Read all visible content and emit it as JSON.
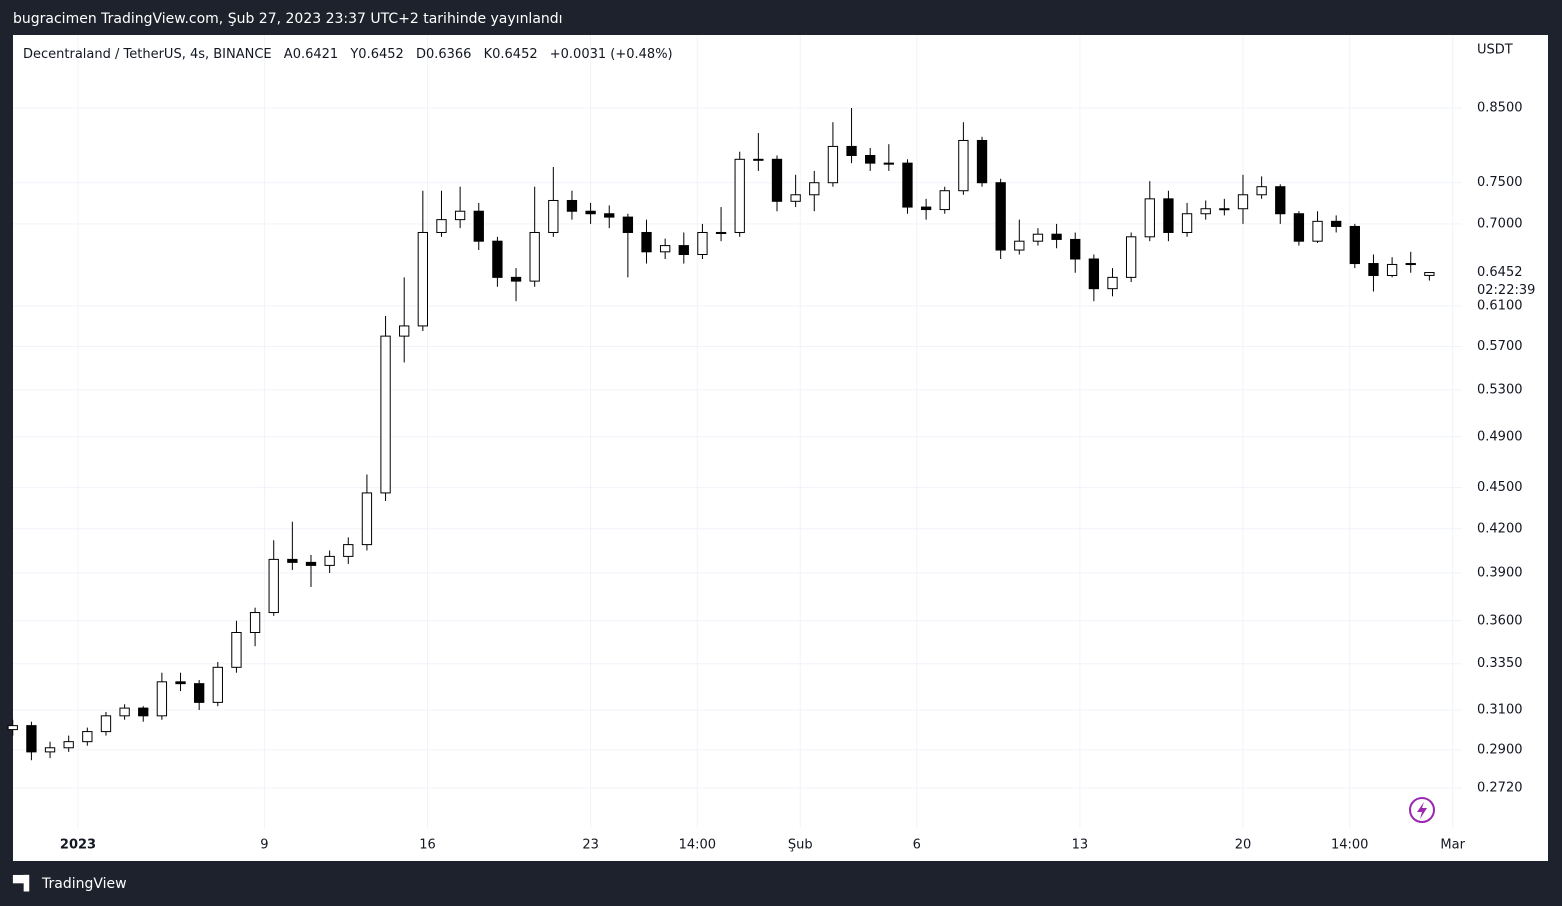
{
  "header": {
    "text": "bugracimen TradingView.com, Şub 27, 2023 23:37 UTC+2 tarihinde yayınlandı"
  },
  "footer": {
    "brand": "TradingView"
  },
  "chart_data": {
    "type": "candlestick",
    "title": "Decentraland / TetherUS, 4s, BINANCE",
    "ohlc_labels": [
      "A",
      "Y",
      "D",
      "K"
    ],
    "change": "+0.0031 (+0.48%)",
    "unit": "USDT",
    "countdown": "02:22:39",
    "log_scale": true,
    "grid": true,
    "up_color": "#ffffff",
    "down_color": "#000000",
    "wick_color": "#000000",
    "x": [
      -2.8,
      -2,
      -1.2,
      -0.4,
      0.4,
      1.2,
      2,
      2.8,
      3.6,
      4.4,
      5.2,
      6,
      6.8,
      7.6,
      8.4,
      9.2,
      10,
      10.8,
      11.6,
      12.4,
      13.2,
      14,
      14.8,
      15.6,
      16.4,
      17.2,
      18,
      18.8,
      19.6,
      20.4,
      21.2,
      22,
      22.8,
      23.6,
      24.4,
      25.2,
      26,
      26.8,
      27.6,
      28.4,
      29.2,
      30,
      30.8,
      31.6,
      32.4,
      33.2,
      34,
      34.8,
      35.6,
      36.4,
      37.2,
      38,
      38.8,
      39.6,
      40.4,
      41.2,
      42,
      42.8,
      43.6,
      44.4,
      45.2,
      46,
      46.8,
      47.6,
      48.4,
      49.2,
      50,
      50.8,
      51.6,
      52.4,
      53.2,
      54,
      54.8,
      55.6,
      56.4,
      57.2,
      58
    ],
    "open": [
      0.3,
      0.302,
      0.289,
      0.291,
      0.294,
      0.299,
      0.307,
      0.311,
      0.307,
      0.325,
      0.324,
      0.314,
      0.333,
      0.353,
      0.365,
      0.399,
      0.397,
      0.395,
      0.401,
      0.409,
      0.446,
      0.58,
      0.59,
      0.69,
      0.705,
      0.715,
      0.68,
      0.64,
      0.636,
      0.69,
      0.728,
      0.715,
      0.712,
      0.708,
      0.69,
      0.668,
      0.675,
      0.665,
      0.69,
      0.69,
      0.78,
      0.78,
      0.727,
      0.735,
      0.75,
      0.797,
      0.785,
      0.775,
      0.775,
      0.72,
      0.717,
      0.74,
      0.805,
      0.75,
      0.67,
      0.68,
      0.688,
      0.682,
      0.66,
      0.628,
      0.64,
      0.685,
      0.73,
      0.69,
      0.712,
      0.718,
      0.718,
      0.735,
      0.745,
      0.712,
      0.68,
      0.703,
      0.697,
      0.655,
      0.642,
      0.654,
      0.6421
    ],
    "high": [
      0.305,
      0.304,
      0.294,
      0.297,
      0.301,
      0.309,
      0.313,
      0.312,
      0.33,
      0.33,
      0.326,
      0.336,
      0.36,
      0.368,
      0.412,
      0.425,
      0.402,
      0.405,
      0.414,
      0.46,
      0.6,
      0.64,
      0.74,
      0.74,
      0.745,
      0.725,
      0.685,
      0.65,
      0.745,
      0.77,
      0.74,
      0.725,
      0.722,
      0.712,
      0.705,
      0.683,
      0.69,
      0.7,
      0.72,
      0.79,
      0.815,
      0.785,
      0.76,
      0.765,
      0.83,
      0.85,
      0.795,
      0.8,
      0.78,
      0.73,
      0.745,
      0.83,
      0.81,
      0.755,
      0.705,
      0.695,
      0.7,
      0.69,
      0.665,
      0.65,
      0.69,
      0.752,
      0.74,
      0.725,
      0.728,
      0.73,
      0.76,
      0.758,
      0.748,
      0.715,
      0.715,
      0.71,
      0.7,
      0.665,
      0.662,
      0.668,
      0.6452
    ],
    "low": [
      0.297,
      0.285,
      0.286,
      0.289,
      0.292,
      0.297,
      0.305,
      0.304,
      0.305,
      0.32,
      0.31,
      0.312,
      0.33,
      0.345,
      0.363,
      0.392,
      0.381,
      0.39,
      0.396,
      0.405,
      0.44,
      0.555,
      0.585,
      0.685,
      0.695,
      0.67,
      0.63,
      0.615,
      0.63,
      0.685,
      0.705,
      0.7,
      0.695,
      0.64,
      0.655,
      0.66,
      0.655,
      0.66,
      0.68,
      0.685,
      0.765,
      0.715,
      0.72,
      0.715,
      0.745,
      0.775,
      0.765,
      0.765,
      0.712,
      0.705,
      0.712,
      0.735,
      0.745,
      0.66,
      0.665,
      0.675,
      0.672,
      0.645,
      0.615,
      0.62,
      0.635,
      0.68,
      0.68,
      0.685,
      0.705,
      0.71,
      0.7,
      0.73,
      0.7,
      0.675,
      0.678,
      0.69,
      0.65,
      0.625,
      0.64,
      0.645,
      0.6366
    ],
    "close": [
      0.302,
      0.289,
      0.291,
      0.294,
      0.299,
      0.307,
      0.311,
      0.307,
      0.325,
      0.324,
      0.314,
      0.333,
      0.353,
      0.365,
      0.399,
      0.397,
      0.395,
      0.401,
      0.409,
      0.446,
      0.58,
      0.59,
      0.69,
      0.705,
      0.715,
      0.68,
      0.64,
      0.636,
      0.69,
      0.728,
      0.715,
      0.712,
      0.708,
      0.69,
      0.668,
      0.675,
      0.665,
      0.69,
      0.69,
      0.78,
      0.78,
      0.727,
      0.735,
      0.75,
      0.797,
      0.785,
      0.775,
      0.775,
      0.72,
      0.717,
      0.74,
      0.805,
      0.75,
      0.67,
      0.68,
      0.688,
      0.682,
      0.66,
      0.628,
      0.64,
      0.685,
      0.73,
      0.69,
      0.712,
      0.718,
      0.718,
      0.735,
      0.745,
      0.712,
      0.68,
      0.703,
      0.697,
      0.655,
      0.642,
      0.654,
      0.655,
      0.6452
    ],
    "xlim": [
      -2.79,
      59.4
    ],
    "xticks": [
      {
        "value": 0,
        "label": "2023"
      },
      {
        "value": 8,
        "label": "9"
      },
      {
        "value": 15,
        "label": "16"
      },
      {
        "value": 22,
        "label": "23"
      },
      {
        "value": 26.58,
        "label": "14:00"
      },
      {
        "value": 31,
        "label": "Şub"
      },
      {
        "value": 36,
        "label": "6"
      },
      {
        "value": 43,
        "label": "13"
      },
      {
        "value": 50,
        "label": "20"
      },
      {
        "value": 54.58,
        "label": "14:00"
      },
      {
        "value": 59,
        "label": "Mar"
      }
    ],
    "ylim": [
      0.2544,
      0.9606
    ],
    "yticks": [
      {
        "value": 0.85,
        "label": "0.8500"
      },
      {
        "value": 0.75,
        "label": "0.7500"
      },
      {
        "value": 0.7,
        "label": "0.7000"
      },
      {
        "value": 0.61,
        "label": "0.6100"
      },
      {
        "value": 0.57,
        "label": "0.5700"
      },
      {
        "value": 0.53,
        "label": "0.5300"
      },
      {
        "value": 0.49,
        "label": "0.4900"
      },
      {
        "value": 0.45,
        "label": "0.4500"
      },
      {
        "value": 0.42,
        "label": "0.4200"
      },
      {
        "value": 0.39,
        "label": "0.3900"
      },
      {
        "value": 0.36,
        "label": "0.3600"
      },
      {
        "value": 0.335,
        "label": "0.3350"
      },
      {
        "value": 0.31,
        "label": "0.3100"
      },
      {
        "value": 0.29,
        "label": "0.2900"
      },
      {
        "value": 0.272,
        "label": "0.2720"
      }
    ]
  }
}
